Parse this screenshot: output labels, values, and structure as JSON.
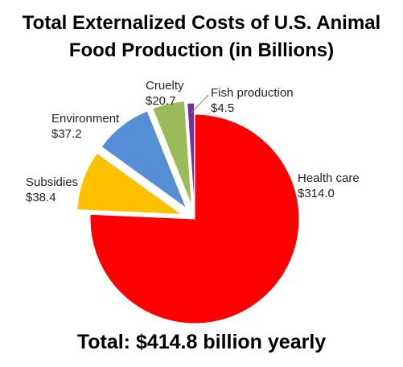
{
  "title_line1": "Total Externalized Costs of U.S. Animal",
  "title_line2": "Food Production (in Billions)",
  "total_text": "Total: $414.8 billion yearly",
  "chart_data": {
    "type": "pie",
    "title": "Total Externalized Costs of U.S. Animal Food Production (in Billions)",
    "exploded": true,
    "slices": [
      {
        "label": "Health care",
        "value_label": "$314.0",
        "value": 314.0,
        "color": "#ff0000"
      },
      {
        "label": "Subsidies",
        "value_label": "$38.4",
        "value": 38.4,
        "color": "#ffc000"
      },
      {
        "label": "Environment",
        "value_label": "$37.2",
        "value": 37.2,
        "color": "#558ed5"
      },
      {
        "label": "Cruelty",
        "value_label": "$20.7",
        "value": 20.7,
        "color": "#9bbb59"
      },
      {
        "label": "Fish production",
        "value_label": "$4.5",
        "value": 4.5,
        "color": "#7030a0"
      }
    ]
  }
}
